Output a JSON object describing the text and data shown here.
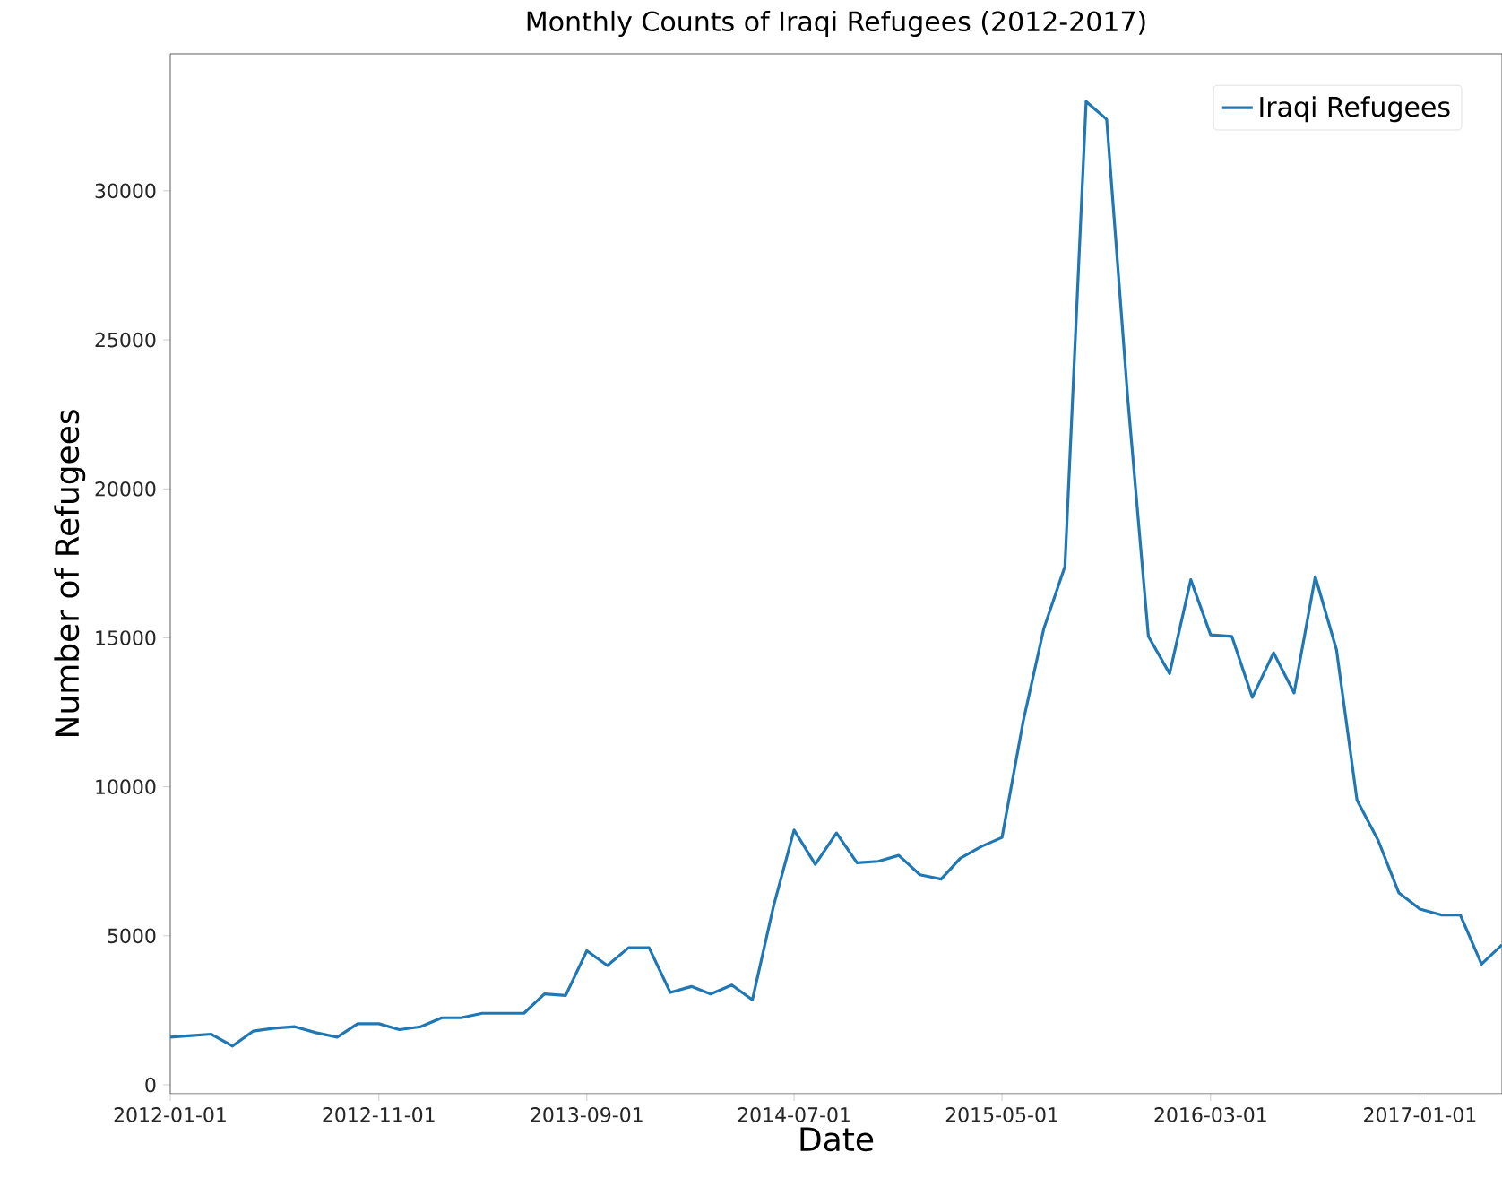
{
  "chart_data": {
    "type": "line",
    "title": "Monthly Counts of Iraqi Refugees (2012-2017)",
    "xlabel": "Date",
    "ylabel": "Number of Refugees",
    "legend": "top right",
    "x": [
      "2012-01",
      "2012-02",
      "2012-03",
      "2012-04",
      "2012-05",
      "2012-06",
      "2012-07",
      "2012-08",
      "2012-09",
      "2012-10",
      "2012-11",
      "2012-12",
      "2013-01",
      "2013-02",
      "2013-03",
      "2013-04",
      "2013-05",
      "2013-06",
      "2013-07",
      "2013-08",
      "2013-09",
      "2013-10",
      "2013-11",
      "2013-12",
      "2014-01",
      "2014-02",
      "2014-03",
      "2014-04",
      "2014-05",
      "2014-06",
      "2014-07",
      "2014-08",
      "2014-09",
      "2014-10",
      "2014-11",
      "2014-12",
      "2015-01",
      "2015-02",
      "2015-03",
      "2015-04",
      "2015-05",
      "2015-06",
      "2015-07",
      "2015-08",
      "2015-09",
      "2015-10",
      "2015-11",
      "2015-12",
      "2016-01",
      "2016-02",
      "2016-03",
      "2016-04",
      "2016-05",
      "2016-06",
      "2016-07",
      "2016-08",
      "2016-09",
      "2016-10",
      "2016-11",
      "2016-12",
      "2017-01",
      "2017-02",
      "2017-03",
      "2017-04",
      "2017-05"
    ],
    "series": [
      {
        "name": "Iraqi Refugees",
        "color": "#1f77b4",
        "values": [
          1600,
          1650,
          1700,
          1300,
          1800,
          1900,
          1950,
          1750,
          1600,
          2050,
          2050,
          1850,
          1950,
          2250,
          2250,
          2400,
          2400,
          2400,
          3050,
          3000,
          4500,
          4000,
          4600,
          4600,
          3100,
          3300,
          3050,
          3350,
          2850,
          6000,
          8550,
          7400,
          8450,
          7450,
          7500,
          7700,
          7050,
          6900,
          7600,
          8000,
          8300,
          12200,
          15300,
          17400,
          33000,
          32400,
          23000,
          15050,
          13800,
          16950,
          15100,
          15050,
          13000,
          14500,
          13150,
          17050,
          14600,
          9550,
          8200,
          6450,
          5900,
          5700,
          5700,
          4050,
          4700
        ]
      }
    ],
    "xlim": [
      "2012-01-01",
      "2017-05-01"
    ],
    "ylim": [
      -300,
      34600
    ],
    "xticks": [
      "2012-01-01",
      "2012-11-01",
      "2013-09-01",
      "2014-07-01",
      "2015-05-01",
      "2016-03-01",
      "2017-01-01"
    ],
    "yticks": [
      0,
      5000,
      10000,
      15000,
      20000,
      25000,
      30000
    ]
  }
}
